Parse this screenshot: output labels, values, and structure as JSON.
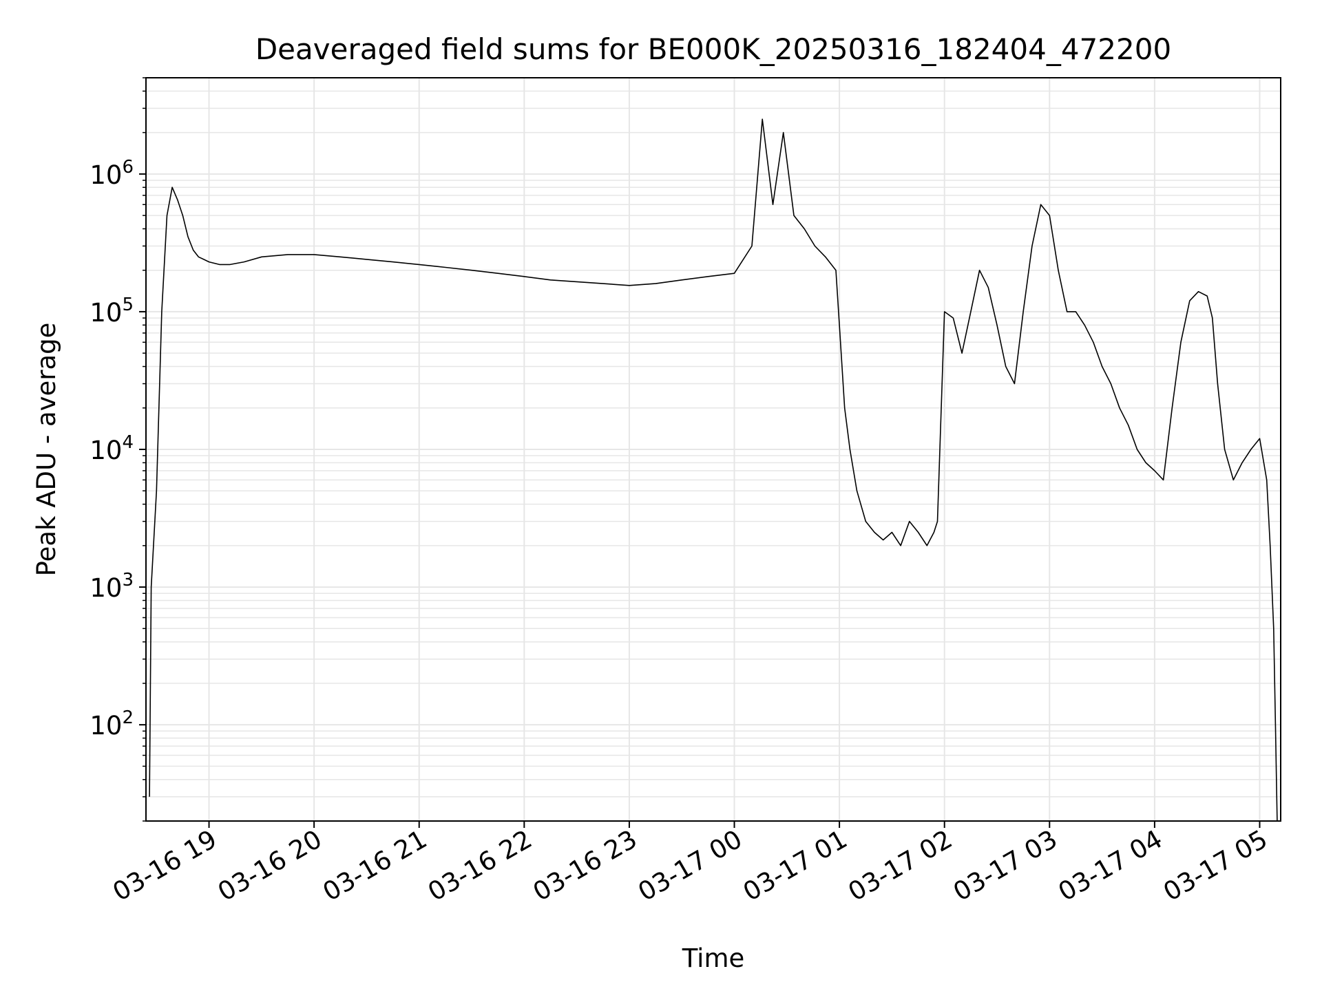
{
  "chart_data": {
    "type": "line",
    "title": "Deaveraged field sums for BE000K_20250316_182404_472200",
    "xlabel": "Time",
    "ylabel": "Peak ADU - average",
    "yscale": "log",
    "x_range": [
      "2025-03-16 18:24",
      "2025-03-17 05:12"
    ],
    "ylim": [
      20,
      5000000
    ],
    "grid": true,
    "line_color": "#000000",
    "grid_color": "#e6e6e6",
    "x_ticks": [
      {
        "x": "2025-03-16 19:00",
        "label": "03-16 19"
      },
      {
        "x": "2025-03-16 20:00",
        "label": "03-16 20"
      },
      {
        "x": "2025-03-16 21:00",
        "label": "03-16 21"
      },
      {
        "x": "2025-03-16 22:00",
        "label": "03-16 22"
      },
      {
        "x": "2025-03-16 23:00",
        "label": "03-16 23"
      },
      {
        "x": "2025-03-17 00:00",
        "label": "03-17 00"
      },
      {
        "x": "2025-03-17 01:00",
        "label": "03-17 01"
      },
      {
        "x": "2025-03-17 02:00",
        "label": "03-17 02"
      },
      {
        "x": "2025-03-17 03:00",
        "label": "03-17 03"
      },
      {
        "x": "2025-03-17 04:00",
        "label": "03-17 04"
      },
      {
        "x": "2025-03-17 05:00",
        "label": "03-17 05"
      }
    ],
    "y_ticks": [
      {
        "value": 100,
        "mantissa": "10",
        "exponent": "2"
      },
      {
        "value": 1000,
        "mantissa": "10",
        "exponent": "3"
      },
      {
        "value": 10000,
        "mantissa": "10",
        "exponent": "4"
      },
      {
        "value": 100000,
        "mantissa": "10",
        "exponent": "5"
      },
      {
        "value": 1000000,
        "mantissa": "10",
        "exponent": "6"
      }
    ],
    "series": [
      {
        "x": [
          "2025-03-16 18:26",
          "2025-03-16 18:27",
          "2025-03-16 18:30",
          "2025-03-16 18:33",
          "2025-03-16 18:36",
          "2025-03-16 18:39",
          "2025-03-16 18:42",
          "2025-03-16 18:45",
          "2025-03-16 18:48",
          "2025-03-16 18:51",
          "2025-03-16 18:54",
          "2025-03-16 18:57",
          "2025-03-16 19:00",
          "2025-03-16 19:06",
          "2025-03-16 19:12",
          "2025-03-16 19:20",
          "2025-03-16 19:30",
          "2025-03-16 19:45",
          "2025-03-16 20:00",
          "2025-03-16 20:15",
          "2025-03-16 20:30",
          "2025-03-16 20:45",
          "2025-03-16 21:00",
          "2025-03-16 21:15",
          "2025-03-16 21:30",
          "2025-03-16 21:45",
          "2025-03-16 22:00",
          "2025-03-16 22:15",
          "2025-03-16 22:30",
          "2025-03-16 22:45",
          "2025-03-16 23:00",
          "2025-03-16 23:15",
          "2025-03-16 23:30",
          "2025-03-16 23:45",
          "2025-03-17 00:00",
          "2025-03-17 00:10",
          "2025-03-17 00:16",
          "2025-03-17 00:22",
          "2025-03-17 00:28",
          "2025-03-17 00:34",
          "2025-03-17 00:40",
          "2025-03-17 00:46",
          "2025-03-17 00:52",
          "2025-03-17 00:58",
          "2025-03-17 01:00",
          "2025-03-17 01:03",
          "2025-03-17 01:06",
          "2025-03-17 01:10",
          "2025-03-17 01:15",
          "2025-03-17 01:20",
          "2025-03-17 01:25",
          "2025-03-17 01:30",
          "2025-03-17 01:35",
          "2025-03-17 01:40",
          "2025-03-17 01:45",
          "2025-03-17 01:50",
          "2025-03-17 01:54",
          "2025-03-17 01:56",
          "2025-03-17 02:00",
          "2025-03-17 02:05",
          "2025-03-17 02:10",
          "2025-03-17 02:15",
          "2025-03-17 02:20",
          "2025-03-17 02:25",
          "2025-03-17 02:30",
          "2025-03-17 02:35",
          "2025-03-17 02:40",
          "2025-03-17 02:45",
          "2025-03-17 02:50",
          "2025-03-17 02:55",
          "2025-03-17 03:00",
          "2025-03-17 03:05",
          "2025-03-17 03:10",
          "2025-03-17 03:15",
          "2025-03-17 03:20",
          "2025-03-17 03:25",
          "2025-03-17 03:30",
          "2025-03-17 03:35",
          "2025-03-17 03:40",
          "2025-03-17 03:45",
          "2025-03-17 03:50",
          "2025-03-17 03:55",
          "2025-03-17 04:00",
          "2025-03-17 04:05",
          "2025-03-17 04:10",
          "2025-03-17 04:15",
          "2025-03-17 04:20",
          "2025-03-17 04:25",
          "2025-03-17 04:30",
          "2025-03-17 04:33",
          "2025-03-17 04:36",
          "2025-03-17 04:40",
          "2025-03-17 04:45",
          "2025-03-17 04:50",
          "2025-03-17 04:55",
          "2025-03-17 05:00",
          "2025-03-17 05:04",
          "2025-03-17 05:06",
          "2025-03-17 05:08",
          "2025-03-17 05:09",
          "2025-03-17 05:10"
        ],
        "y": [
          30,
          1000,
          5000,
          100000,
          500000,
          800000,
          650000,
          500000,
          350000,
          280000,
          250000,
          240000,
          230000,
          220000,
          220000,
          230000,
          250000,
          260000,
          260000,
          250000,
          240000,
          230000,
          220000,
          210000,
          200000,
          190000,
          180000,
          170000,
          165000,
          160000,
          155000,
          160000,
          170000,
          180000,
          190000,
          300000,
          2500000,
          600000,
          2000000,
          500000,
          400000,
          300000,
          250000,
          200000,
          80000,
          20000,
          10000,
          5000,
          3000,
          2500,
          2200,
          2500,
          2000,
          3000,
          2500,
          2000,
          2500,
          3000,
          100000,
          90000,
          50000,
          100000,
          200000,
          150000,
          80000,
          40000,
          30000,
          100000,
          300000,
          600000,
          500000,
          200000,
          100000,
          100000,
          80000,
          60000,
          40000,
          30000,
          20000,
          15000,
          10000,
          8000,
          7000,
          6000,
          20000,
          60000,
          120000,
          140000,
          130000,
          90000,
          30000,
          10000,
          6000,
          8000,
          10000,
          12000,
          6000,
          2000,
          500,
          100,
          20
        ]
      }
    ]
  }
}
